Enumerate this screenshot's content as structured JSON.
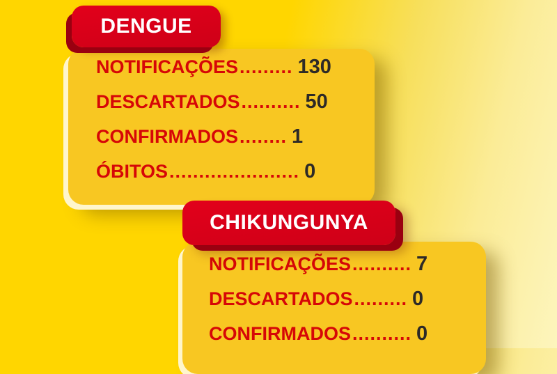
{
  "theme": {
    "bg_deep_yellow": "#FFD600",
    "bg_light_cream": "#FDF5BD",
    "card_yellow": "#F8C722",
    "header_red": "#D50019",
    "header_shadow_red": "#9A0010",
    "label_red": "#D60707",
    "value_dark": "#2D2A27",
    "card_highlight": "#FFF6CC"
  },
  "sections": [
    {
      "title": "DENGUE",
      "rows": [
        {
          "label": "NOTIFICAÇÕES",
          "dots": ".........",
          "value": "130"
        },
        {
          "label": "DESCARTADOS",
          "dots": "..........",
          "value": "50"
        },
        {
          "label": "CONFIRMADOS",
          "dots": "........",
          "value": "1"
        },
        {
          "label": "ÓBITOS",
          "dots": "......................",
          "value": "0"
        }
      ]
    },
    {
      "title": "CHIKUNGUNYA",
      "rows": [
        {
          "label": "NOTIFICAÇÕES",
          "dots": "..........",
          "value": "7"
        },
        {
          "label": "DESCARTADOS",
          "dots": ".........",
          "value": "0"
        },
        {
          "label": "CONFIRMADOS",
          "dots": "..........",
          "value": "0"
        }
      ]
    }
  ],
  "chart_data": [
    {
      "type": "table",
      "title": "DENGUE",
      "categories": [
        "NOTIFICAÇÕES",
        "DESCARTADOS",
        "CONFIRMADOS",
        "ÓBITOS"
      ],
      "values": [
        130,
        50,
        1,
        0
      ]
    },
    {
      "type": "table",
      "title": "CHIKUNGUNYA",
      "categories": [
        "NOTIFICAÇÕES",
        "DESCARTADOS",
        "CONFIRMADOS"
      ],
      "values": [
        7,
        0,
        0
      ]
    }
  ]
}
